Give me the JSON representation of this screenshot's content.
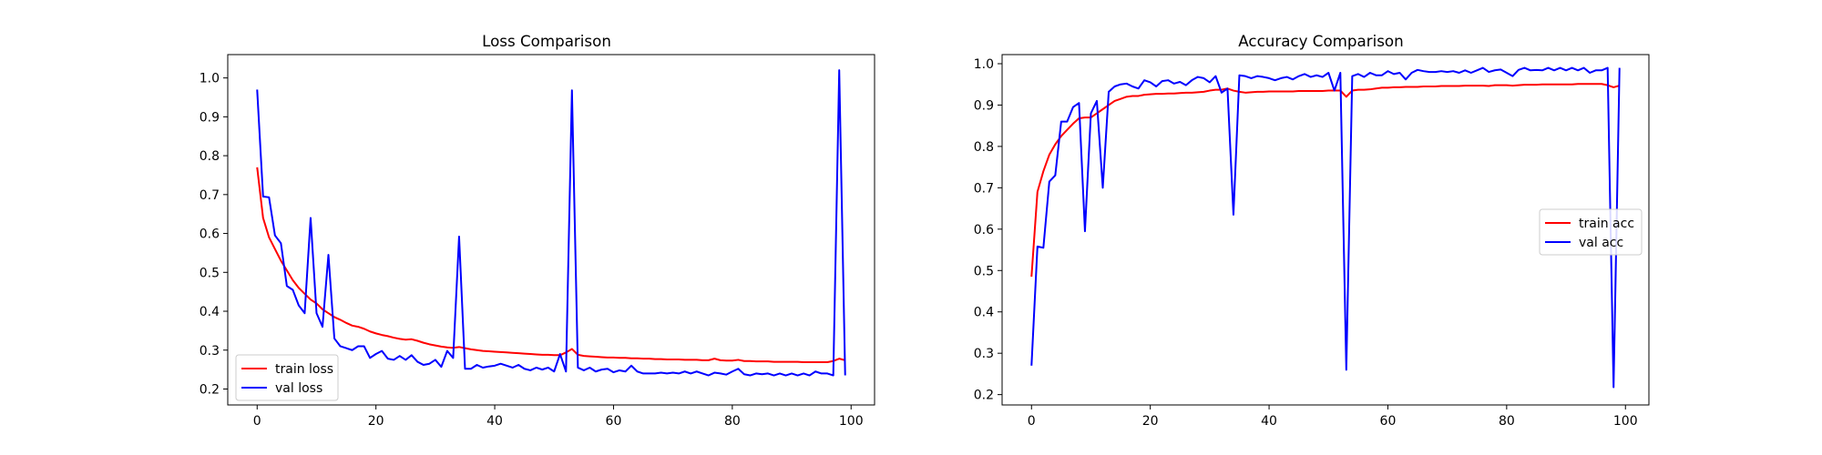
{
  "chart_data": [
    {
      "type": "line",
      "title": "Loss Comparison",
      "xlabel": "",
      "ylabel": "",
      "xlim": [
        -4.95,
        103.95
      ],
      "ylim": [
        0.159,
        1.06
      ],
      "x_ticks": [
        0,
        20,
        40,
        60,
        80,
        100
      ],
      "y_ticks": [
        0.2,
        0.3,
        0.4,
        0.5,
        0.6,
        0.7,
        0.8,
        0.9,
        1.0
      ],
      "grid": false,
      "legend_position": "lower left",
      "series": [
        {
          "name": "train loss",
          "color": "#ff0000",
          "values": [
            0.77,
            0.64,
            0.59,
            0.56,
            0.53,
            0.505,
            0.48,
            0.46,
            0.445,
            0.43,
            0.42,
            0.405,
            0.395,
            0.385,
            0.378,
            0.37,
            0.363,
            0.36,
            0.355,
            0.348,
            0.343,
            0.339,
            0.336,
            0.332,
            0.329,
            0.327,
            0.328,
            0.324,
            0.319,
            0.315,
            0.312,
            0.309,
            0.307,
            0.306,
            0.308,
            0.305,
            0.302,
            0.3,
            0.298,
            0.297,
            0.296,
            0.295,
            0.294,
            0.293,
            0.292,
            0.291,
            0.29,
            0.289,
            0.288,
            0.288,
            0.287,
            0.287,
            0.294,
            0.303,
            0.288,
            0.285,
            0.284,
            0.283,
            0.282,
            0.281,
            0.281,
            0.28,
            0.28,
            0.279,
            0.279,
            0.278,
            0.278,
            0.277,
            0.277,
            0.276,
            0.276,
            0.276,
            0.275,
            0.275,
            0.275,
            0.274,
            0.274,
            0.278,
            0.274,
            0.273,
            0.273,
            0.275,
            0.272,
            0.272,
            0.271,
            0.271,
            0.271,
            0.27,
            0.27,
            0.27,
            0.27,
            0.27,
            0.269,
            0.269,
            0.269,
            0.269,
            0.269,
            0.272,
            0.278,
            0.274
          ]
        },
        {
          "name": "val loss",
          "color": "#0000ff",
          "values": [
            0.97,
            0.695,
            0.693,
            0.595,
            0.575,
            0.465,
            0.455,
            0.415,
            0.395,
            0.64,
            0.395,
            0.36,
            0.545,
            0.33,
            0.31,
            0.305,
            0.3,
            0.31,
            0.31,
            0.28,
            0.29,
            0.298,
            0.278,
            0.275,
            0.285,
            0.275,
            0.287,
            0.27,
            0.262,
            0.265,
            0.275,
            0.257,
            0.298,
            0.28,
            0.592,
            0.252,
            0.252,
            0.262,
            0.255,
            0.258,
            0.26,
            0.265,
            0.26,
            0.255,
            0.262,
            0.252,
            0.248,
            0.255,
            0.25,
            0.255,
            0.245,
            0.29,
            0.245,
            0.968,
            0.255,
            0.248,
            0.255,
            0.245,
            0.25,
            0.252,
            0.243,
            0.248,
            0.245,
            0.26,
            0.245,
            0.24,
            0.24,
            0.24,
            0.242,
            0.24,
            0.242,
            0.24,
            0.245,
            0.24,
            0.245,
            0.24,
            0.235,
            0.242,
            0.24,
            0.237,
            0.245,
            0.252,
            0.238,
            0.235,
            0.24,
            0.238,
            0.24,
            0.235,
            0.24,
            0.235,
            0.24,
            0.235,
            0.24,
            0.235,
            0.245,
            0.24,
            0.24,
            0.235,
            1.02,
            0.235
          ]
        }
      ]
    },
    {
      "type": "line",
      "title": "Accuracy Comparison",
      "xlabel": "",
      "ylabel": "",
      "xlim": [
        -4.95,
        103.95
      ],
      "ylim": [
        0.175,
        1.022
      ],
      "x_ticks": [
        0,
        20,
        40,
        60,
        80,
        100
      ],
      "y_ticks": [
        0.2,
        0.3,
        0.4,
        0.5,
        0.6,
        0.7,
        0.8,
        0.9,
        1.0
      ],
      "grid": false,
      "legend_position": "center right",
      "series": [
        {
          "name": "train acc",
          "color": "#ff0000",
          "values": [
            0.485,
            0.69,
            0.74,
            0.78,
            0.805,
            0.825,
            0.84,
            0.855,
            0.868,
            0.87,
            0.87,
            0.88,
            0.89,
            0.9,
            0.91,
            0.915,
            0.92,
            0.922,
            0.922,
            0.925,
            0.926,
            0.927,
            0.927,
            0.928,
            0.928,
            0.929,
            0.93,
            0.93,
            0.931,
            0.932,
            0.935,
            0.937,
            0.937,
            0.94,
            0.935,
            0.932,
            0.93,
            0.931,
            0.932,
            0.932,
            0.933,
            0.933,
            0.933,
            0.933,
            0.933,
            0.934,
            0.934,
            0.934,
            0.934,
            0.934,
            0.935,
            0.935,
            0.935,
            0.92,
            0.935,
            0.937,
            0.937,
            0.938,
            0.94,
            0.942,
            0.942,
            0.943,
            0.943,
            0.944,
            0.944,
            0.944,
            0.945,
            0.945,
            0.945,
            0.946,
            0.946,
            0.946,
            0.946,
            0.947,
            0.947,
            0.947,
            0.947,
            0.946,
            0.948,
            0.948,
            0.948,
            0.947,
            0.948,
            0.949,
            0.949,
            0.949,
            0.95,
            0.95,
            0.95,
            0.95,
            0.95,
            0.95,
            0.951,
            0.951,
            0.951,
            0.951,
            0.951,
            0.948,
            0.943,
            0.947
          ]
        },
        {
          "name": "val acc",
          "color": "#0000ff",
          "values": [
            0.27,
            0.558,
            0.555,
            0.715,
            0.73,
            0.86,
            0.86,
            0.895,
            0.905,
            0.595,
            0.88,
            0.91,
            0.7,
            0.932,
            0.945,
            0.95,
            0.952,
            0.945,
            0.94,
            0.96,
            0.955,
            0.945,
            0.958,
            0.96,
            0.952,
            0.956,
            0.948,
            0.96,
            0.968,
            0.965,
            0.955,
            0.97,
            0.93,
            0.94,
            0.635,
            0.972,
            0.97,
            0.965,
            0.97,
            0.968,
            0.965,
            0.96,
            0.965,
            0.968,
            0.962,
            0.97,
            0.975,
            0.968,
            0.972,
            0.968,
            0.978,
            0.935,
            0.978,
            0.26,
            0.97,
            0.975,
            0.968,
            0.978,
            0.972,
            0.972,
            0.982,
            0.975,
            0.978,
            0.962,
            0.978,
            0.985,
            0.982,
            0.98,
            0.98,
            0.982,
            0.98,
            0.982,
            0.978,
            0.984,
            0.978,
            0.984,
            0.99,
            0.98,
            0.984,
            0.986,
            0.978,
            0.97,
            0.985,
            0.99,
            0.984,
            0.985,
            0.984,
            0.99,
            0.984,
            0.99,
            0.984,
            0.99,
            0.984,
            0.99,
            0.978,
            0.984,
            0.984,
            0.99,
            0.218,
            0.99
          ]
        }
      ]
    }
  ]
}
